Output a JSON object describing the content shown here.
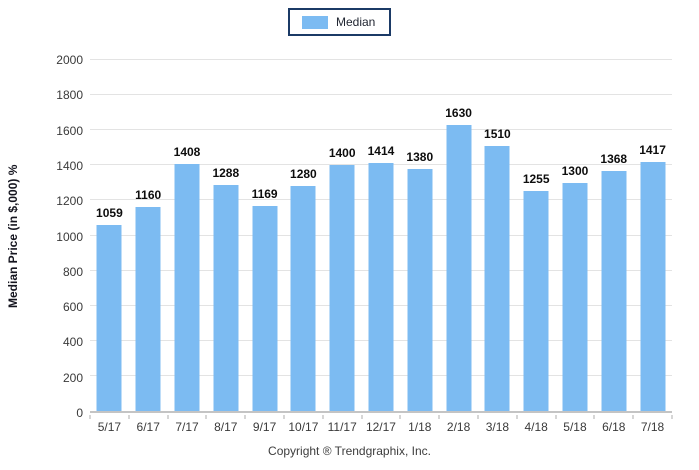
{
  "legend": {
    "label": "Median",
    "swatch_color": "#7CBBF2",
    "border_color": "#1B3A66"
  },
  "y_axis": {
    "title": "Median Price (in $,000) %",
    "ticks": [
      0,
      200,
      400,
      600,
      800,
      1000,
      1200,
      1400,
      1600,
      1800,
      2000
    ]
  },
  "footer": {
    "copyright": "Copyright ® Trendgraphix, Inc."
  },
  "colors": {
    "bar_fill": "#7CBBF2",
    "gridline": "#E3E3E3",
    "axis_line": "#C4C4C4",
    "tick_mark": "#ADADAD",
    "value_label": "#0D0D0D",
    "tick_label": "#3A3A3A",
    "legend_border": "#1B3A66"
  },
  "chart_data": {
    "type": "bar",
    "title": "",
    "categories": [
      "5/17",
      "6/17",
      "7/17",
      "8/17",
      "9/17",
      "10/17",
      "11/17",
      "12/17",
      "1/18",
      "2/18",
      "3/18",
      "4/18",
      "5/18",
      "6/18",
      "7/18"
    ],
    "series": [
      {
        "name": "Median",
        "values": [
          1059,
          1160,
          1408,
          1288,
          1169,
          1280,
          1400,
          1414,
          1380,
          1630,
          1510,
          1255,
          1300,
          1368,
          1417
        ]
      }
    ],
    "xlabel": "",
    "ylabel": "Median Price (in $,000) %",
    "ylim": [
      0,
      2000
    ],
    "grid": true,
    "legend_position": "top-center"
  }
}
